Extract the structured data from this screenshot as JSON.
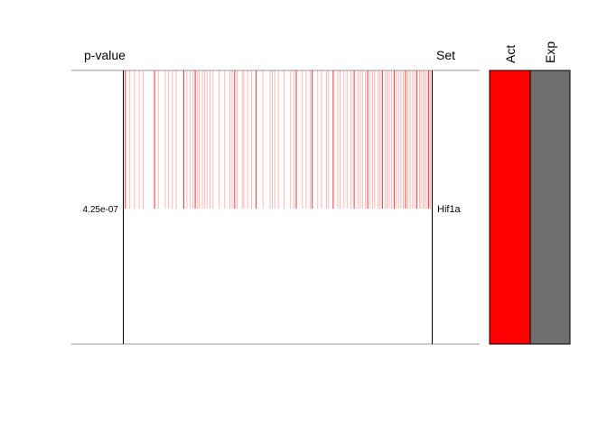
{
  "chart_data": {
    "type": "barcode",
    "pvalue_header": "p-value",
    "set_header": "Set",
    "column_headers": [
      "Act",
      "Exp"
    ],
    "rows": [
      {
        "set": "Hif1a",
        "pvalue": "4.25e-07",
        "gene_ranks": [
          0.005,
          0.02,
          0.035,
          0.05,
          0.063,
          0.1,
          0.112,
          0.135,
          0.145,
          0.158,
          0.17,
          0.195,
          0.205,
          0.215,
          0.225,
          0.232,
          0.238,
          0.245,
          0.255,
          0.262,
          0.27,
          0.28,
          0.29,
          0.31,
          0.328,
          0.345,
          0.352,
          0.36,
          0.368,
          0.385,
          0.39,
          0.402,
          0.415,
          0.43,
          0.452,
          0.475,
          0.482,
          0.49,
          0.502,
          0.52,
          0.542,
          0.552,
          0.56,
          0.58,
          0.592,
          0.605,
          0.612,
          0.63,
          0.642,
          0.658,
          0.665,
          0.68,
          0.695,
          0.702,
          0.715,
          0.725,
          0.738,
          0.748,
          0.76,
          0.768,
          0.775,
          0.785,
          0.792,
          0.8,
          0.808,
          0.815,
          0.825,
          0.832,
          0.84,
          0.848,
          0.855,
          0.862,
          0.87,
          0.878,
          0.885,
          0.892,
          0.9,
          0.908,
          0.915,
          0.922,
          0.93,
          0.938,
          0.945,
          0.952,
          0.96,
          0.965,
          0.972,
          0.978,
          0.985,
          0.99,
          0.995
        ],
        "strong_ranks": [
          0.005,
          0.1,
          0.195,
          0.232,
          0.36,
          0.43,
          0.56,
          0.612,
          0.68,
          0.748,
          0.792,
          0.84,
          0.878,
          0.915,
          0.952,
          0.99
        ],
        "barcode_color": "#ff0000",
        "cells": [
          {
            "column": "Act",
            "color": "#ff0000"
          },
          {
            "column": "Exp",
            "color": "#6e6e6e"
          }
        ]
      }
    ]
  }
}
